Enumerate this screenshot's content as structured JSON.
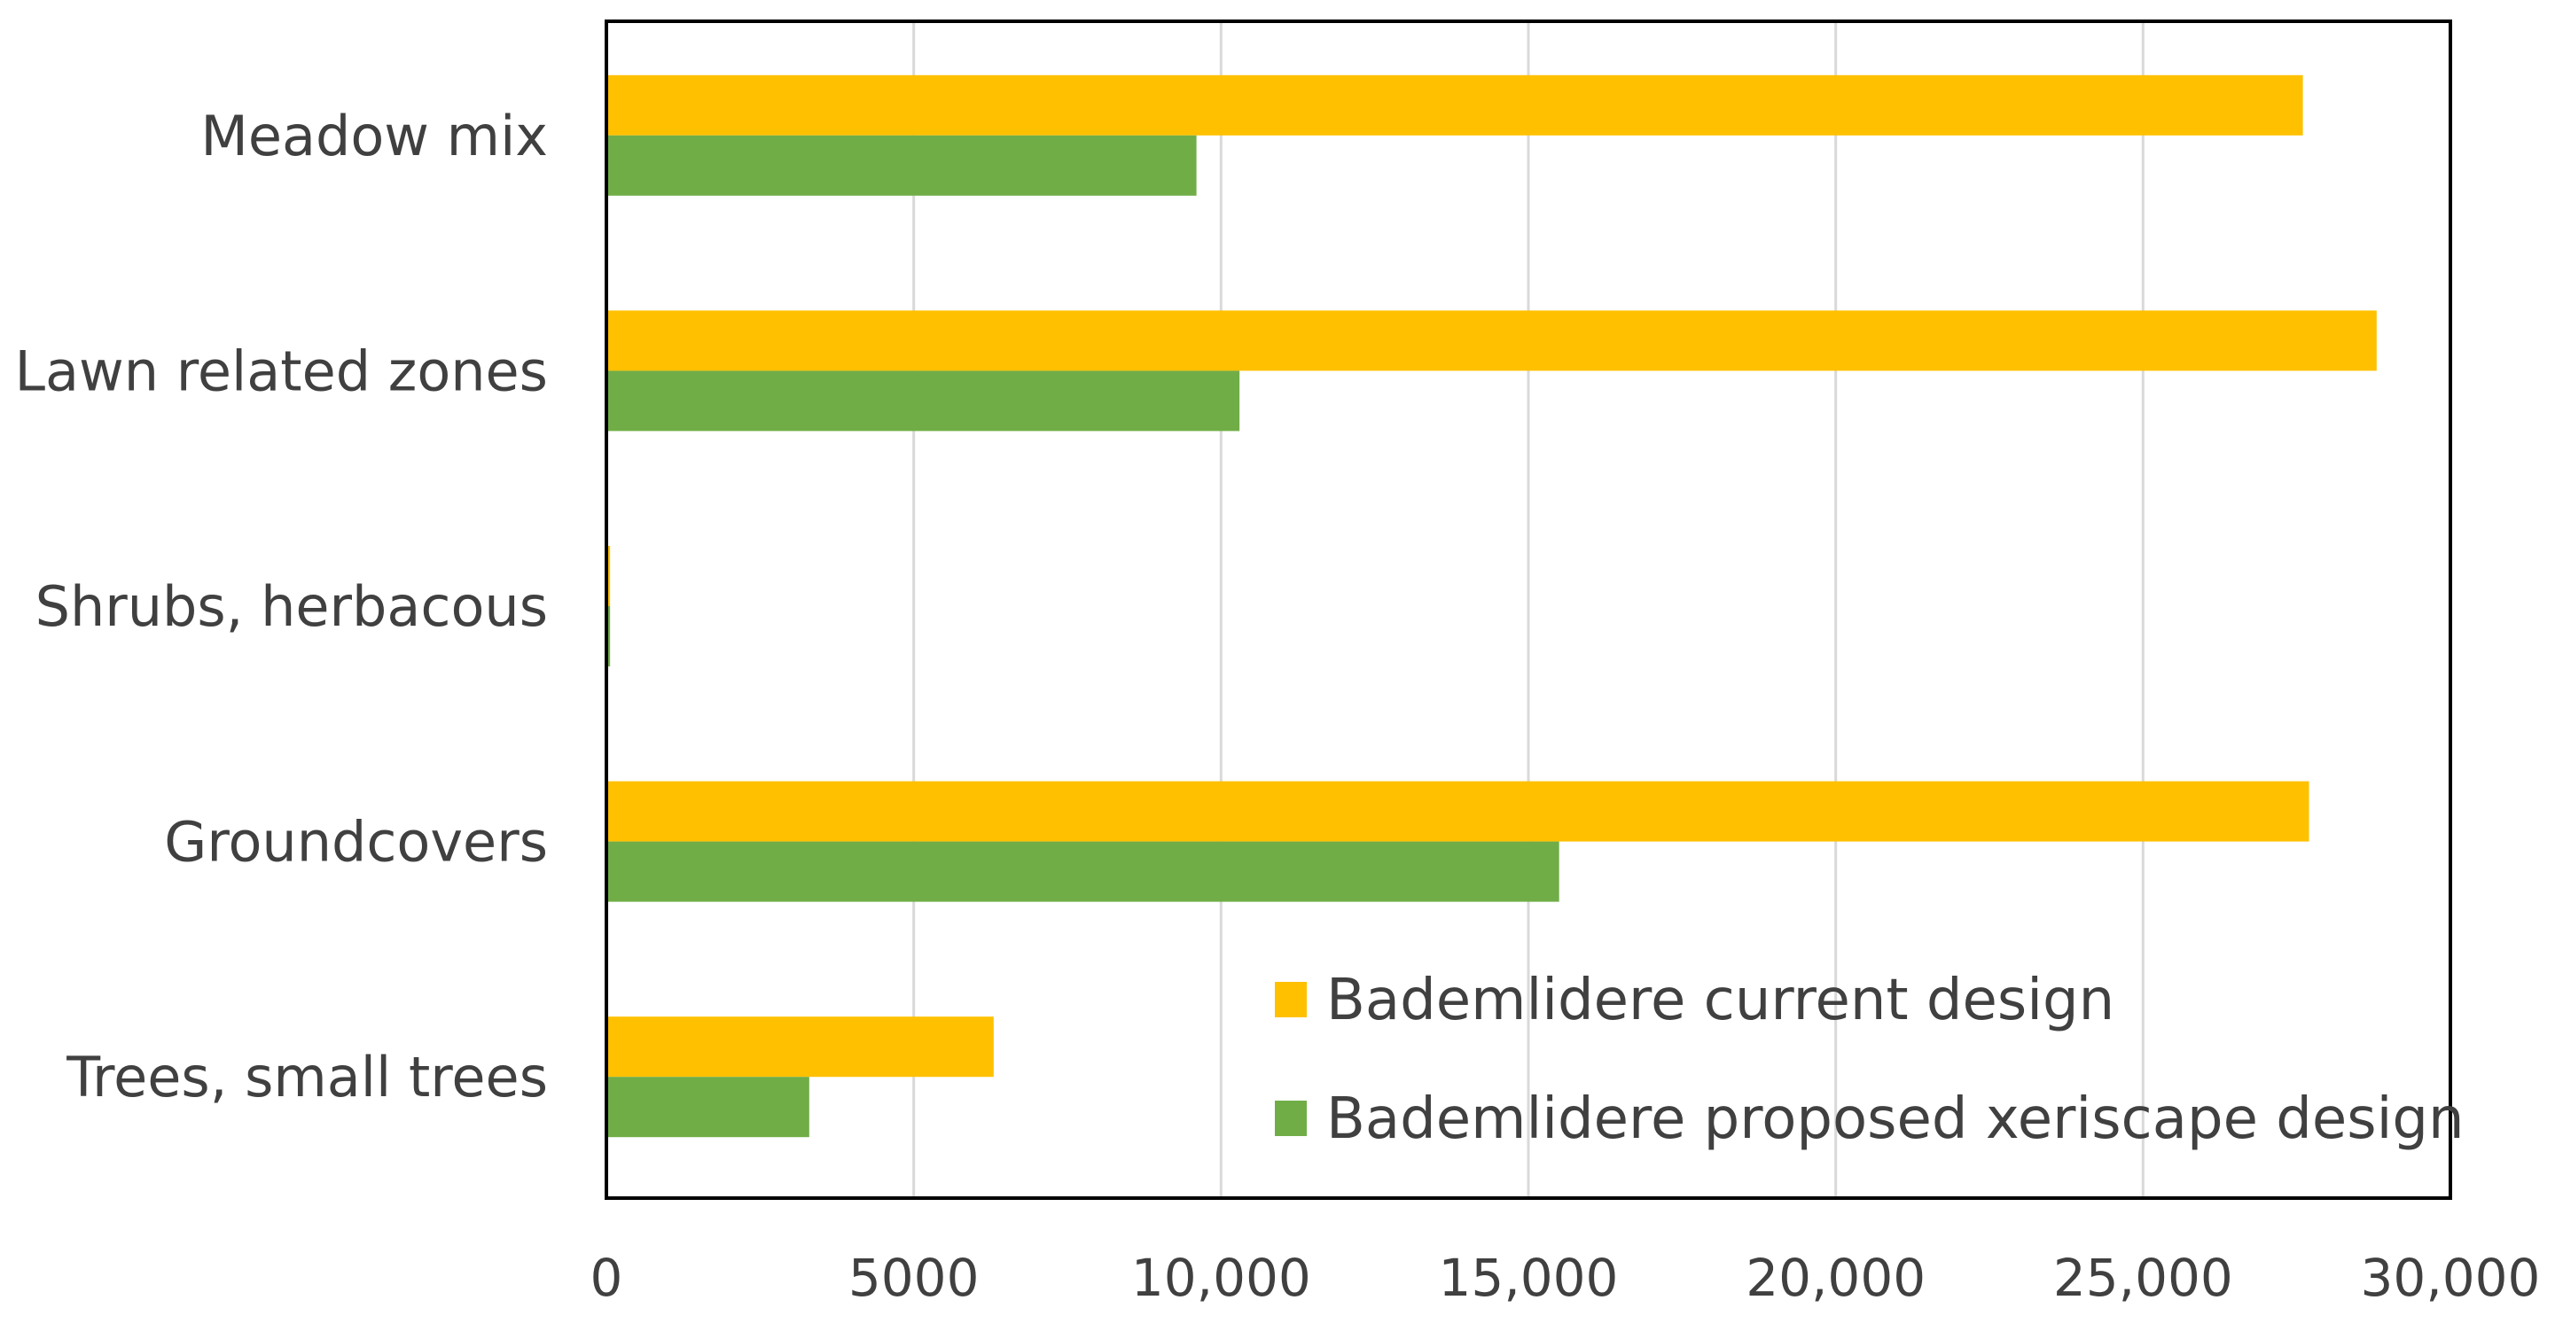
{
  "chart_data": {
    "type": "bar",
    "orientation": "horizontal",
    "categories": [
      "Meadow mix",
      "Lawn related zones",
      "Shrubs, herbacous",
      "Groundcovers",
      "Trees, small trees"
    ],
    "series": [
      {
        "name": "Bademlidere current design",
        "color": "#FFC000",
        "values": [
          27600,
          28800,
          60,
          27700,
          6300
        ]
      },
      {
        "name": "Bademlidere proposed xeriscape design",
        "color": "#70AD47",
        "values": [
          9600,
          10300,
          60,
          15500,
          3300
        ]
      }
    ],
    "xlim": [
      0,
      30000
    ],
    "x_ticks": [
      {
        "value": 0,
        "label": "0"
      },
      {
        "value": 5000,
        "label": "5000"
      },
      {
        "value": 10000,
        "label": "10,000"
      },
      {
        "value": 15000,
        "label": "15,000"
      },
      {
        "value": 20000,
        "label": "20,000"
      },
      {
        "value": 25000,
        "label": "25,000"
      },
      {
        "value": 30000,
        "label": "30,000"
      }
    ],
    "grid": "vertical",
    "legend_position": "bottom-right",
    "title": "",
    "xlabel": "",
    "ylabel": ""
  }
}
